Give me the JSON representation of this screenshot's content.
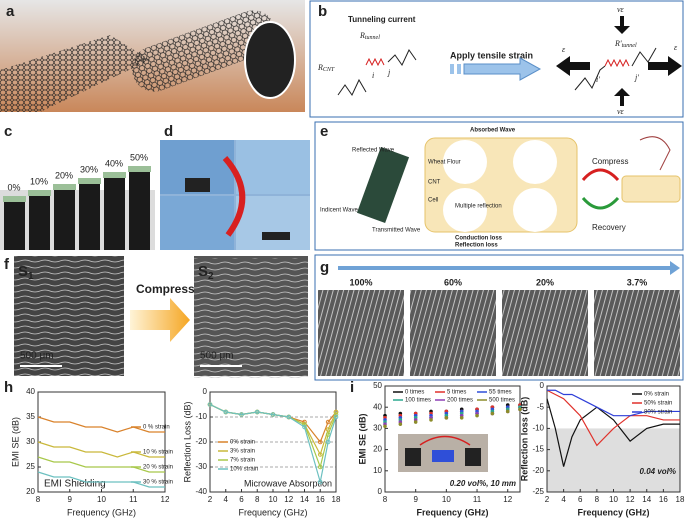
{
  "panels": {
    "labels": [
      "a",
      "b",
      "c",
      "d",
      "e",
      "f",
      "g",
      "h",
      "i"
    ],
    "b": {
      "tunneling": "Tunneling current",
      "rtunnel": {
        "main": "R",
        "sub": "tunnel"
      },
      "rcnt": {
        "main": "R",
        "sub": "CNT"
      },
      "i": "i",
      "j": "j",
      "apply": "Apply tensile strain",
      "nu_top": "νε",
      "nu_bottom": "νε",
      "rtunnel2": {
        "main": "R'",
        "sub": "tunnel"
      },
      "eps_left": "ε",
      "eps_right": "ε",
      "i2": "i'",
      "j2": "j'"
    },
    "c": {
      "strains": [
        "0%",
        "10%",
        "20%",
        "30%",
        "40%",
        "50%"
      ]
    },
    "e": {
      "reflected": "Reflected Wave",
      "absorbed": "Absorbed Wave",
      "incident": "Indicent Wave",
      "transmitted": "Transmitted Wave",
      "flour": "Wheat Flour",
      "cnt": "CNT",
      "cell": "Cell",
      "multiple": "Multiple reflection",
      "conduction": "Conduction loss",
      "reflection": "Reflection loss",
      "compress": "Compress",
      "recovery": "Recovery"
    },
    "f": {
      "s1": {
        "main": "S",
        "sub": "1"
      },
      "s2": {
        "main": "S",
        "sub": "2"
      },
      "compress": "Compress",
      "scale1": "500 μm",
      "scale2": "500 μm"
    },
    "g": {
      "strains": [
        "100%",
        "60%",
        "20%",
        "3.7%"
      ]
    }
  },
  "chart_data": [
    {
      "type": "line",
      "xlabel": "Frequency (GHz)",
      "ylabel": "EMI SE (dB)",
      "annotation": "EMI Shielding",
      "x": [
        8,
        8.5,
        9,
        9.5,
        10,
        10.5,
        11,
        11.5,
        12
      ],
      "xlim": [
        8,
        12
      ],
      "xticks": [
        8,
        9,
        10,
        11,
        12
      ],
      "ylim": [
        20,
        40
      ],
      "yticks": [
        20,
        25,
        30,
        35,
        40
      ],
      "legend": "upper right",
      "markers": false,
      "series": [
        {
          "name": "0 % strain",
          "color": "#d9822b",
          "values": [
            35,
            34,
            34,
            33,
            33,
            32,
            33,
            32,
            32
          ]
        },
        {
          "name": "10 % strain",
          "color": "#c9b83a",
          "values": [
            30,
            29,
            29,
            28,
            28,
            27,
            28,
            27,
            27
          ]
        },
        {
          "name": "20 % strain",
          "color": "#a8c84a",
          "values": [
            27,
            26,
            26,
            25,
            25,
            25,
            25,
            24,
            24
          ]
        },
        {
          "name": "30 % strain",
          "color": "#6cc0c0",
          "values": [
            24,
            23,
            23,
            22,
            22,
            22,
            22,
            21,
            21
          ]
        }
      ]
    },
    {
      "type": "line",
      "xlabel": "Frequency (GHz)",
      "ylabel": "Reflection Loss (dB)",
      "annotation": "Microwave Absorption",
      "x": [
        2,
        4,
        6,
        8,
        10,
        12,
        14,
        16,
        17,
        18
      ],
      "xlim": [
        2,
        18
      ],
      "xticks": [
        2,
        4,
        6,
        8,
        10,
        12,
        14,
        16,
        18
      ],
      "ylim": [
        -40,
        0
      ],
      "yticks": [
        0,
        -10,
        -20,
        -30,
        -40
      ],
      "grid": true,
      "legend": "lower left",
      "markers": true,
      "series": [
        {
          "name": "0% strain",
          "color": "#d9822b",
          "values": [
            -5,
            -8,
            -9,
            -8,
            -9,
            -10,
            -12,
            -20,
            -12,
            -8
          ]
        },
        {
          "name": "3% strain",
          "color": "#c9b83a",
          "values": [
            -5,
            -8,
            -9,
            -8,
            -9,
            -10,
            -13,
            -25,
            -15,
            -8
          ]
        },
        {
          "name": "7% strain",
          "color": "#a8c84a",
          "values": [
            -5,
            -8,
            -9,
            -8,
            -9,
            -10,
            -13,
            -30,
            -17,
            -9
          ]
        },
        {
          "name": "10% strain",
          "color": "#6cc0c0",
          "values": [
            -5,
            -8,
            -9,
            -8,
            -9,
            -10,
            -14,
            -36,
            -20,
            -10
          ]
        }
      ]
    },
    {
      "type": "scatter",
      "xlabel": "Frequency (GHz)",
      "ylabel": "EMI SE (dB)",
      "annotation": "0.20 vol%, 10 mm",
      "x": [
        8,
        8.5,
        9,
        9.5,
        10,
        10.5,
        11,
        11.5,
        12,
        12.4
      ],
      "xlim": [
        8,
        12.4
      ],
      "xticks": [
        8,
        9,
        10,
        11,
        12
      ],
      "ylim": [
        0,
        50
      ],
      "yticks": [
        0,
        10,
        20,
        30,
        40,
        50
      ],
      "legend": "upper center",
      "series": [
        {
          "name": "0 times",
          "color": "#111111",
          "values": [
            36,
            37,
            37,
            38,
            38,
            39,
            39,
            40,
            41,
            41
          ]
        },
        {
          "name": "5 times",
          "color": "#e0312b",
          "values": [
            35,
            36,
            37,
            37,
            38,
            38,
            39,
            40,
            40,
            41
          ]
        },
        {
          "name": "55 times",
          "color": "#2f4fd8",
          "values": [
            34,
            35,
            36,
            36,
            37,
            38,
            38,
            39,
            40,
            40
          ]
        },
        {
          "name": "100 times",
          "color": "#2aa88f",
          "values": [
            33,
            34,
            35,
            35,
            36,
            37,
            37,
            38,
            39,
            40
          ]
        },
        {
          "name": "200 times",
          "color": "#8d3fb5",
          "values": [
            32,
            33,
            34,
            35,
            35,
            36,
            37,
            37,
            38,
            39
          ]
        },
        {
          "name": "500 times",
          "color": "#8c8c2a",
          "values": [
            31,
            32,
            33,
            34,
            35,
            35,
            36,
            37,
            38,
            39
          ]
        }
      ]
    },
    {
      "type": "line",
      "xlabel": "Frequency (GHz)",
      "ylabel": "Reflection loss (dB)",
      "annotation": "0.04 vol%",
      "x": [
        2,
        3,
        4,
        5,
        6,
        8,
        10,
        12,
        14,
        16,
        18
      ],
      "xlim": [
        2,
        18
      ],
      "xticks": [
        2,
        4,
        6,
        8,
        10,
        12,
        14,
        16,
        18
      ],
      "ylim": [
        -25,
        0
      ],
      "yticks": [
        0,
        -5,
        -10,
        -15,
        -20,
        -25
      ],
      "shaded_below": -10,
      "legend": "upper right",
      "markers": false,
      "series": [
        {
          "name": "0% strain",
          "color": "#111111",
          "values": [
            -3,
            -10,
            -19,
            -12,
            -8,
            -5,
            -8,
            -13,
            -10,
            -9,
            -9
          ]
        },
        {
          "name": "50% strain",
          "color": "#e0312b",
          "values": [
            -1,
            -2,
            -3,
            -5,
            -7,
            -14,
            -10,
            -7,
            -7,
            -8,
            -8
          ]
        },
        {
          "name": "80% strain",
          "color": "#2f3fd8",
          "values": [
            -1,
            -1,
            -2,
            -2,
            -3,
            -5,
            -7,
            -7,
            -6,
            -6,
            -6
          ]
        }
      ]
    }
  ]
}
